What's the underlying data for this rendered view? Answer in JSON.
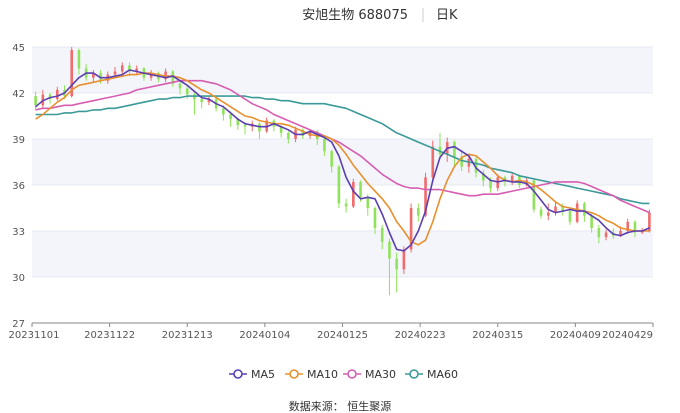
{
  "title": {
    "name": "安旭生物 688075",
    "period": "日K"
  },
  "source": "数据来源： 恒生聚源",
  "colors": {
    "up": "#f06b6b",
    "down": "#8fe35a",
    "ma5": "#5b3fb1",
    "ma10": "#e8902e",
    "ma30": "#d65db1",
    "ma60": "#3b9a98",
    "band": "#f3f5fa",
    "axis": "#888888"
  },
  "chart_data": {
    "type": "candlestick",
    "ylim": [
      27,
      45
    ],
    "yticks": [
      27,
      30,
      33,
      36,
      39,
      42,
      45
    ],
    "xticks": [
      "20231101",
      "20231122",
      "20231213",
      "20240104",
      "20240125",
      "20240223",
      "20240315",
      "20240409",
      "20240429"
    ],
    "legend": [
      "MA5",
      "MA10",
      "MA30",
      "MA60"
    ],
    "legend_position": "bottom",
    "ma5": [
      41.1,
      41.5,
      41.7,
      41.8,
      42.0,
      42.5,
      43.0,
      43.3,
      43.3,
      43.0,
      43.0,
      43.1,
      43.2,
      43.5,
      43.4,
      43.3,
      43.2,
      43.1,
      43.0,
      43.1,
      42.8,
      42.5,
      42.1,
      41.7,
      41.6,
      41.3,
      41.1,
      40.7,
      40.3,
      40.0,
      39.9,
      39.8,
      39.8,
      40.0,
      39.8,
      39.6,
      39.3,
      39.3,
      39.5,
      39.3,
      39.1,
      38.8,
      37.9,
      36.5,
      35.6,
      35.1,
      35.2,
      35.1,
      34.1,
      32.9,
      31.8,
      31.7,
      32.1,
      33.0,
      34.3,
      36.3,
      37.8,
      38.4,
      38.5,
      38.2,
      37.9,
      37.1,
      36.7,
      36.3,
      36.2,
      36.3,
      36.2,
      36.2,
      36.1,
      35.6,
      35.0,
      34.4,
      34.2,
      34.3,
      34.4,
      34.3,
      34.3,
      34.0,
      33.7,
      33.2,
      32.8,
      32.7,
      32.9,
      33.0,
      33.0,
      33.2
    ],
    "ma10": [
      40.3,
      40.6,
      41.0,
      41.4,
      41.7,
      42.2,
      42.5,
      42.6,
      42.7,
      42.8,
      42.9,
      43.0,
      43.1,
      43.2,
      43.2,
      43.3,
      43.3,
      43.2,
      43.1,
      43.1,
      43.0,
      42.8,
      42.5,
      42.2,
      42.0,
      41.7,
      41.4,
      41.1,
      40.8,
      40.5,
      40.4,
      40.2,
      40.1,
      40.0,
      40.0,
      39.9,
      39.7,
      39.5,
      39.3,
      39.2,
      39.2,
      39.0,
      38.6,
      38.0,
      37.3,
      36.7,
      36.1,
      35.6,
      35.1,
      34.5,
      33.6,
      33.0,
      32.3,
      32.1,
      32.4,
      33.6,
      35.1,
      36.3,
      37.2,
      37.8,
      38.0,
      37.9,
      37.5,
      37.1,
      36.6,
      36.3,
      36.2,
      36.3,
      36.2,
      36.0,
      35.7,
      35.3,
      34.9,
      34.6,
      34.5,
      34.4,
      34.3,
      34.2,
      34.0,
      33.7,
      33.5,
      33.2,
      33.1,
      33.0,
      33.0,
      33.0
    ],
    "ma30": [
      40.9,
      41.0,
      41.0,
      41.1,
      41.2,
      41.2,
      41.3,
      41.4,
      41.5,
      41.6,
      41.7,
      41.8,
      41.9,
      42.0,
      42.2,
      42.3,
      42.4,
      42.5,
      42.6,
      42.7,
      42.8,
      42.8,
      42.8,
      42.8,
      42.7,
      42.6,
      42.4,
      42.2,
      41.9,
      41.6,
      41.3,
      41.1,
      40.9,
      40.6,
      40.4,
      40.2,
      40.0,
      39.8,
      39.6,
      39.4,
      39.2,
      39.0,
      38.8,
      38.5,
      38.2,
      37.9,
      37.5,
      37.1,
      36.7,
      36.4,
      36.1,
      35.9,
      35.8,
      35.8,
      35.7,
      35.7,
      35.7,
      35.6,
      35.5,
      35.4,
      35.3,
      35.3,
      35.4,
      35.4,
      35.4,
      35.5,
      35.6,
      35.7,
      35.8,
      35.9,
      36.0,
      36.1,
      36.2,
      36.2,
      36.2,
      36.2,
      36.1,
      35.9,
      35.7,
      35.5,
      35.3,
      35.0,
      34.8,
      34.6,
      34.4,
      34.2
    ],
    "ma60": [
      40.6,
      40.6,
      40.6,
      40.6,
      40.7,
      40.7,
      40.8,
      40.8,
      40.9,
      40.9,
      41.0,
      41.0,
      41.1,
      41.2,
      41.3,
      41.4,
      41.5,
      41.6,
      41.6,
      41.7,
      41.7,
      41.8,
      41.8,
      41.8,
      41.8,
      41.8,
      41.8,
      41.8,
      41.8,
      41.8,
      41.7,
      41.7,
      41.6,
      41.6,
      41.5,
      41.5,
      41.4,
      41.3,
      41.3,
      41.3,
      41.3,
      41.2,
      41.1,
      41.0,
      40.8,
      40.6,
      40.4,
      40.2,
      40.0,
      39.7,
      39.4,
      39.2,
      39.0,
      38.8,
      38.6,
      38.4,
      38.2,
      38.0,
      37.8,
      37.6,
      37.5,
      37.4,
      37.3,
      37.1,
      37.0,
      36.9,
      36.8,
      36.6,
      36.5,
      36.4,
      36.3,
      36.2,
      36.1,
      36.0,
      35.9,
      35.8,
      35.7,
      35.6,
      35.5,
      35.4,
      35.3,
      35.1,
      35.0,
      34.9,
      34.8,
      34.8
    ],
    "candles": [
      [
        41.8,
        41.2,
        42.1,
        40.9
      ],
      [
        41.2,
        41.9,
        42.2,
        41.0
      ],
      [
        41.9,
        41.6,
        42.0,
        41.3
      ],
      [
        41.6,
        42.2,
        42.4,
        41.5
      ],
      [
        42.2,
        41.8,
        42.5,
        41.6
      ],
      [
        41.8,
        44.8,
        45.0,
        41.7
      ],
      [
        44.8,
        43.6,
        44.9,
        43.2
      ],
      [
        43.6,
        43.0,
        43.9,
        42.8
      ],
      [
        43.0,
        43.3,
        43.5,
        42.7
      ],
      [
        43.3,
        42.8,
        43.5,
        42.6
      ],
      [
        42.8,
        43.2,
        43.4,
        42.6
      ],
      [
        43.2,
        43.4,
        43.7,
        43.0
      ],
      [
        43.4,
        43.8,
        44.0,
        43.2
      ],
      [
        43.8,
        43.4,
        44.0,
        43.1
      ],
      [
        43.4,
        43.6,
        43.8,
        43.2
      ],
      [
        43.6,
        43.0,
        43.7,
        42.8
      ],
      [
        43.0,
        43.3,
        43.5,
        42.8
      ],
      [
        43.3,
        42.9,
        43.4,
        42.7
      ],
      [
        42.9,
        43.4,
        43.6,
        42.7
      ],
      [
        43.4,
        42.6,
        43.5,
        42.4
      ],
      [
        42.6,
        42.3,
        42.8,
        41.9
      ],
      [
        42.3,
        41.9,
        42.5,
        41.6
      ],
      [
        41.9,
        41.6,
        42.0,
        40.6
      ],
      [
        41.6,
        41.4,
        41.8,
        41.0
      ],
      [
        41.4,
        41.6,
        41.8,
        41.2
      ],
      [
        41.6,
        41.0,
        41.7,
        40.8
      ],
      [
        41.0,
        40.6,
        41.2,
        40.2
      ],
      [
        40.6,
        40.3,
        40.8,
        39.8
      ],
      [
        40.3,
        39.9,
        40.4,
        39.6
      ],
      [
        39.9,
        39.8,
        40.1,
        39.3
      ],
      [
        39.8,
        40.0,
        40.2,
        39.5
      ],
      [
        40.0,
        39.5,
        40.1,
        39.0
      ],
      [
        39.5,
        40.2,
        40.4,
        39.4
      ],
      [
        40.2,
        39.8,
        40.3,
        39.5
      ],
      [
        39.8,
        39.4,
        39.9,
        39.1
      ],
      [
        39.4,
        39.0,
        39.5,
        38.7
      ],
      [
        39.0,
        39.6,
        39.8,
        38.8
      ],
      [
        39.6,
        39.2,
        39.7,
        39.0
      ],
      [
        39.2,
        39.5,
        39.6,
        39.0
      ],
      [
        39.5,
        39.0,
        39.6,
        38.6
      ],
      [
        39.0,
        38.2,
        39.1,
        37.9
      ],
      [
        38.2,
        37.2,
        38.3,
        36.8
      ],
      [
        37.2,
        34.8,
        37.3,
        34.5
      ],
      [
        34.8,
        34.6,
        35.1,
        34.2
      ],
      [
        34.6,
        36.2,
        36.4,
        34.5
      ],
      [
        36.2,
        35.2,
        36.3,
        34.9
      ],
      [
        35.2,
        34.5,
        35.4,
        34.0
      ],
      [
        34.5,
        33.2,
        34.6,
        32.8
      ],
      [
        33.2,
        32.3,
        33.4,
        31.8
      ],
      [
        32.3,
        31.2,
        32.5,
        28.8
      ],
      [
        31.2,
        30.5,
        31.6,
        29.0
      ],
      [
        30.5,
        31.8,
        32.0,
        30.2
      ],
      [
        31.8,
        34.5,
        34.8,
        31.6
      ],
      [
        34.5,
        34.0,
        34.8,
        33.6
      ],
      [
        34.0,
        36.5,
        36.8,
        33.9
      ],
      [
        36.5,
        38.5,
        38.9,
        36.2
      ],
      [
        38.5,
        38.0,
        39.4,
        37.8
      ],
      [
        38.0,
        38.8,
        39.1,
        37.5
      ],
      [
        38.8,
        37.8,
        38.9,
        37.2
      ],
      [
        37.8,
        37.2,
        38.3,
        36.9
      ],
      [
        37.2,
        37.7,
        38.0,
        36.8
      ],
      [
        37.7,
        36.8,
        37.8,
        36.5
      ],
      [
        36.8,
        36.3,
        37.0,
        35.9
      ],
      [
        36.3,
        35.8,
        36.5,
        35.5
      ],
      [
        35.8,
        36.5,
        36.7,
        35.6
      ],
      [
        36.5,
        36.2,
        36.6,
        35.9
      ],
      [
        36.2,
        36.6,
        36.8,
        36.0
      ],
      [
        36.6,
        36.0,
        36.7,
        35.8
      ],
      [
        36.0,
        36.3,
        36.5,
        35.9
      ],
      [
        36.3,
        34.4,
        36.4,
        34.2
      ],
      [
        34.4,
        34.0,
        34.6,
        33.8
      ],
      [
        34.0,
        34.2,
        34.8,
        33.7
      ],
      [
        34.2,
        34.6,
        34.9,
        34.0
      ],
      [
        34.6,
        34.3,
        34.8,
        34.0
      ],
      [
        34.3,
        33.6,
        34.5,
        33.4
      ],
      [
        33.6,
        34.8,
        35.0,
        33.5
      ],
      [
        34.8,
        34.0,
        34.9,
        33.6
      ],
      [
        34.0,
        33.2,
        34.2,
        32.9
      ],
      [
        33.2,
        32.6,
        33.4,
        32.2
      ],
      [
        32.6,
        32.9,
        33.1,
        32.4
      ],
      [
        32.9,
        32.7,
        33.2,
        32.5
      ],
      [
        32.7,
        33.0,
        33.3,
        32.6
      ],
      [
        33.0,
        33.6,
        33.8,
        32.8
      ],
      [
        33.6,
        32.9,
        33.7,
        32.6
      ],
      [
        32.9,
        33.0,
        33.2,
        32.8
      ],
      [
        33.0,
        34.2,
        34.4,
        32.9
      ]
    ]
  }
}
